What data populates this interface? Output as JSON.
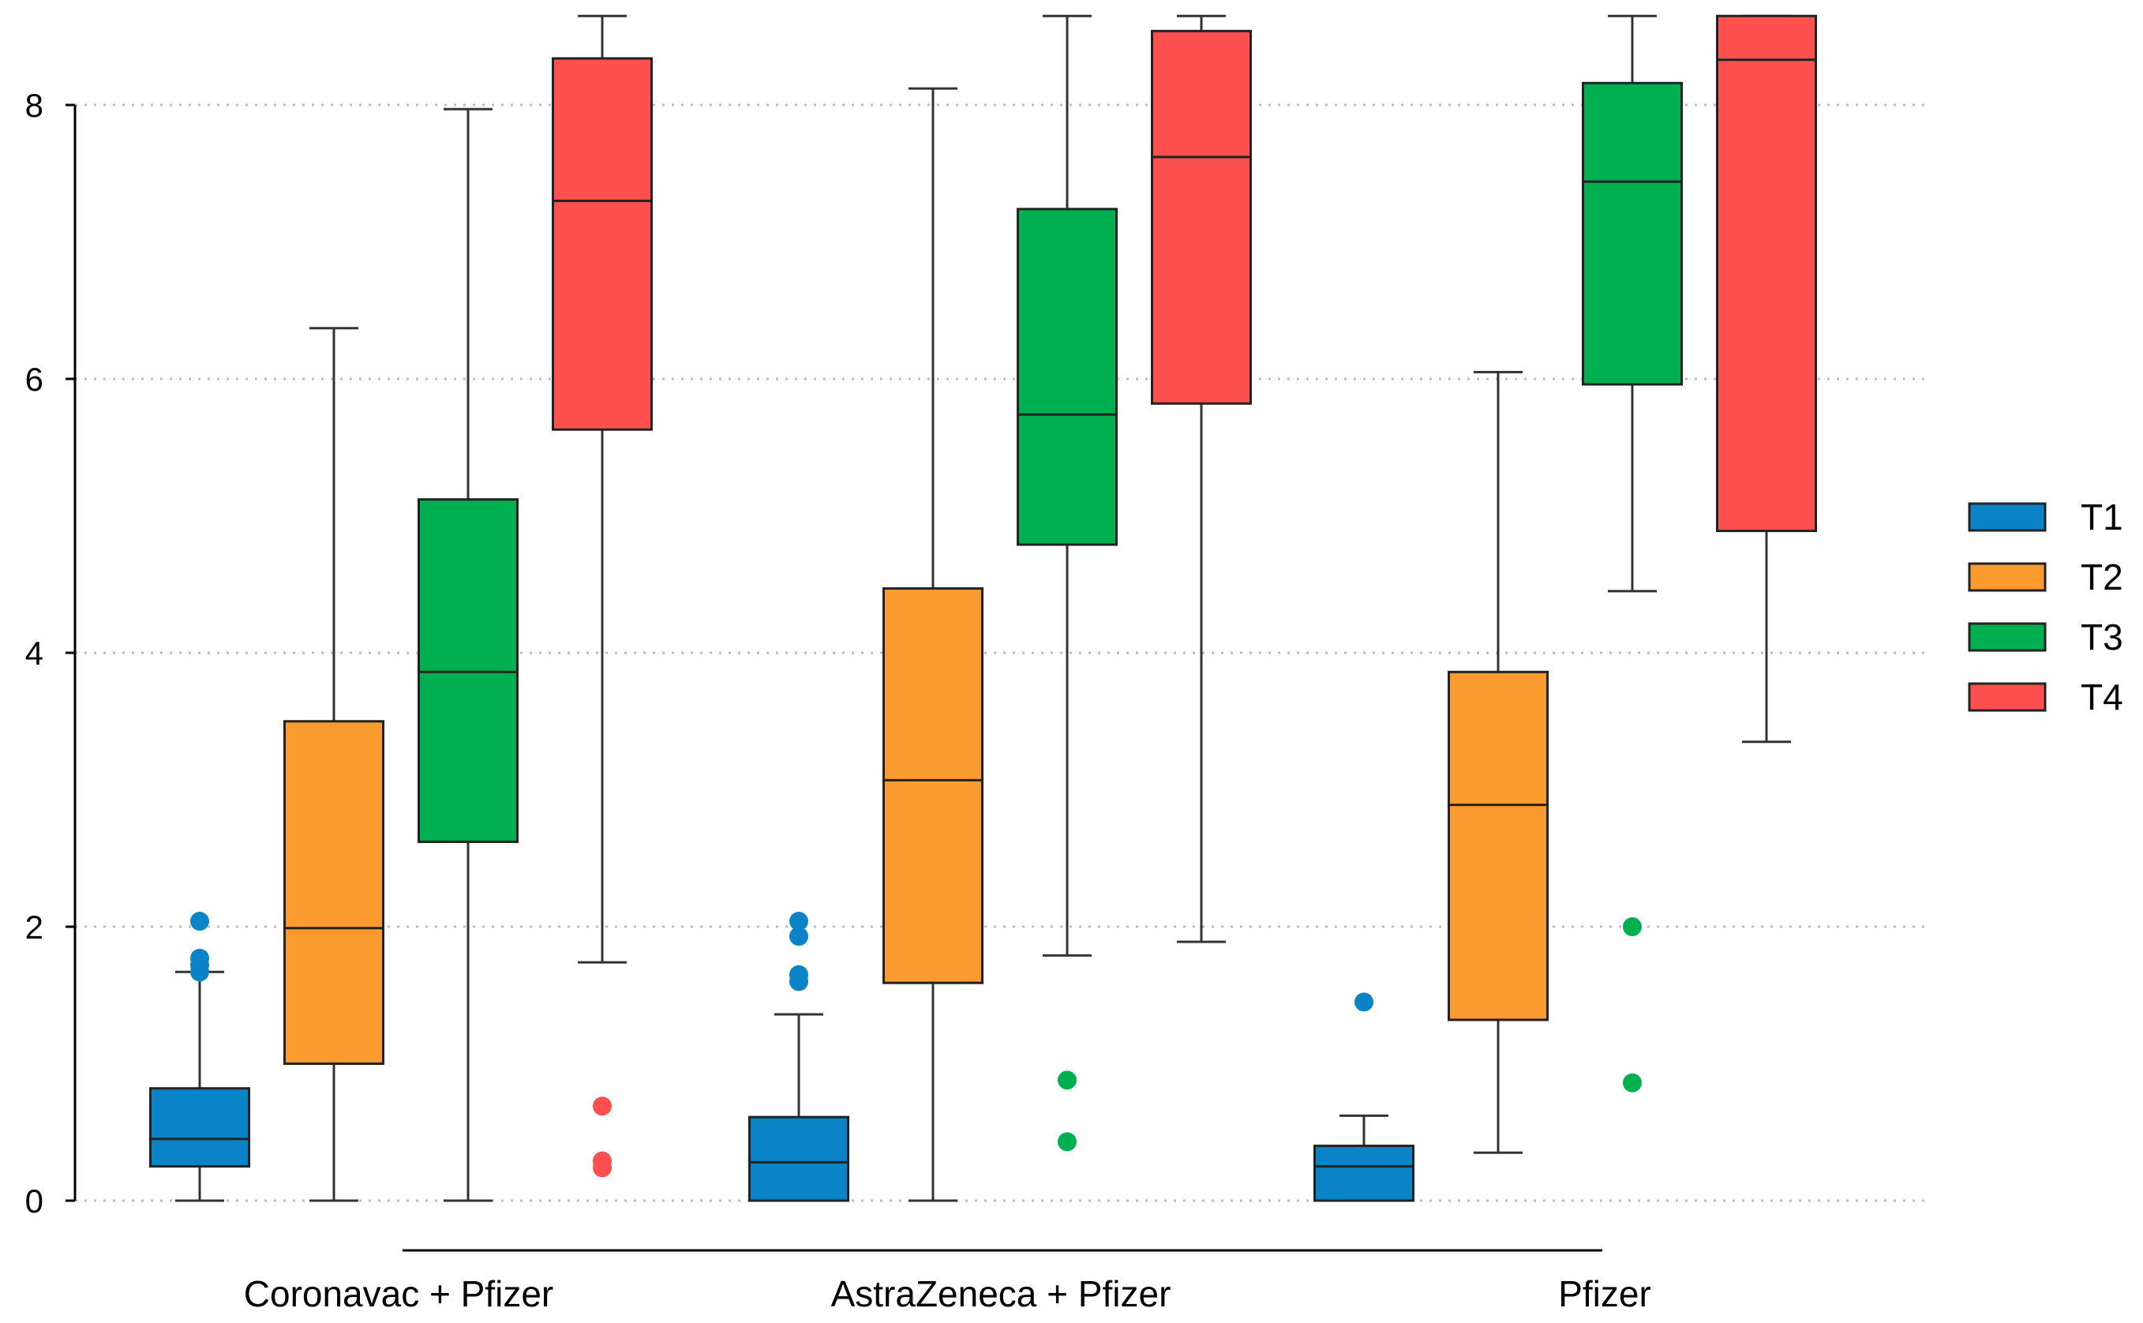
{
  "chart_data": {
    "type": "boxplot",
    "title": "",
    "xlabel": "",
    "ylabel": "",
    "ylim": [
      0,
      8.65
    ],
    "yticks": [
      "0",
      "2",
      "4",
      "6",
      "8"
    ],
    "grid": "horizontal dotted",
    "legend_position": "right",
    "groups": [
      "Coronavac + Pfizer",
      "AstraZeneca + Pfizer",
      "Pfizer"
    ],
    "series": [
      {
        "name": "T1",
        "color": "#0A84C6",
        "boxes": [
          {
            "min": 0,
            "q1": 0.25,
            "median": 0.45,
            "q3": 0.82,
            "max": 1.67,
            "outliers": [
              1.67,
              1.72,
              1.77,
              2.04
            ]
          },
          {
            "min": 0,
            "q1": 0,
            "median": 0.28,
            "q3": 0.61,
            "max": 1.36,
            "outliers": [
              1.6,
              1.65,
              1.93,
              2.04
            ]
          },
          {
            "min": 0,
            "q1": 0,
            "median": 0.25,
            "q3": 0.4,
            "max": 0.62,
            "outliers": [
              1.45
            ]
          }
        ]
      },
      {
        "name": "T2",
        "color": "#F99B2E",
        "boxes": [
          {
            "min": 0,
            "q1": 1.0,
            "median": 1.99,
            "q3": 3.5,
            "max": 6.37,
            "outliers": []
          },
          {
            "min": 0,
            "q1": 1.59,
            "median": 3.07,
            "q3": 4.47,
            "max": 8.12,
            "outliers": []
          },
          {
            "min": 0.35,
            "q1": 1.32,
            "median": 2.89,
            "q3": 3.86,
            "max": 6.05,
            "outliers": []
          }
        ]
      },
      {
        "name": "T3",
        "color": "#00B050",
        "boxes": [
          {
            "min": 0,
            "q1": 2.62,
            "median": 3.86,
            "q3": 5.12,
            "max": 7.97,
            "outliers": []
          },
          {
            "min": 1.79,
            "q1": 4.79,
            "median": 5.74,
            "q3": 7.24,
            "max": 8.65,
            "outliers": [
              0.43,
              0.88
            ]
          },
          {
            "min": 4.45,
            "q1": 5.96,
            "median": 7.44,
            "q3": 8.16,
            "max": 8.65,
            "outliers": [
              0.86,
              2.0
            ]
          }
        ]
      },
      {
        "name": "T4",
        "color": "#FF5050",
        "boxes": [
          {
            "min": 1.74,
            "q1": 5.63,
            "median": 7.3,
            "q3": 8.34,
            "max": 8.65,
            "outliers": [
              0.24,
              0.29,
              0.69
            ]
          },
          {
            "min": 1.89,
            "q1": 5.82,
            "median": 7.62,
            "q3": 8.54,
            "max": 8.65,
            "outliers": []
          },
          {
            "min": 3.35,
            "q1": 4.89,
            "median": 8.33,
            "q3": 8.65,
            "max": 8.65,
            "outliers": []
          }
        ]
      }
    ]
  }
}
